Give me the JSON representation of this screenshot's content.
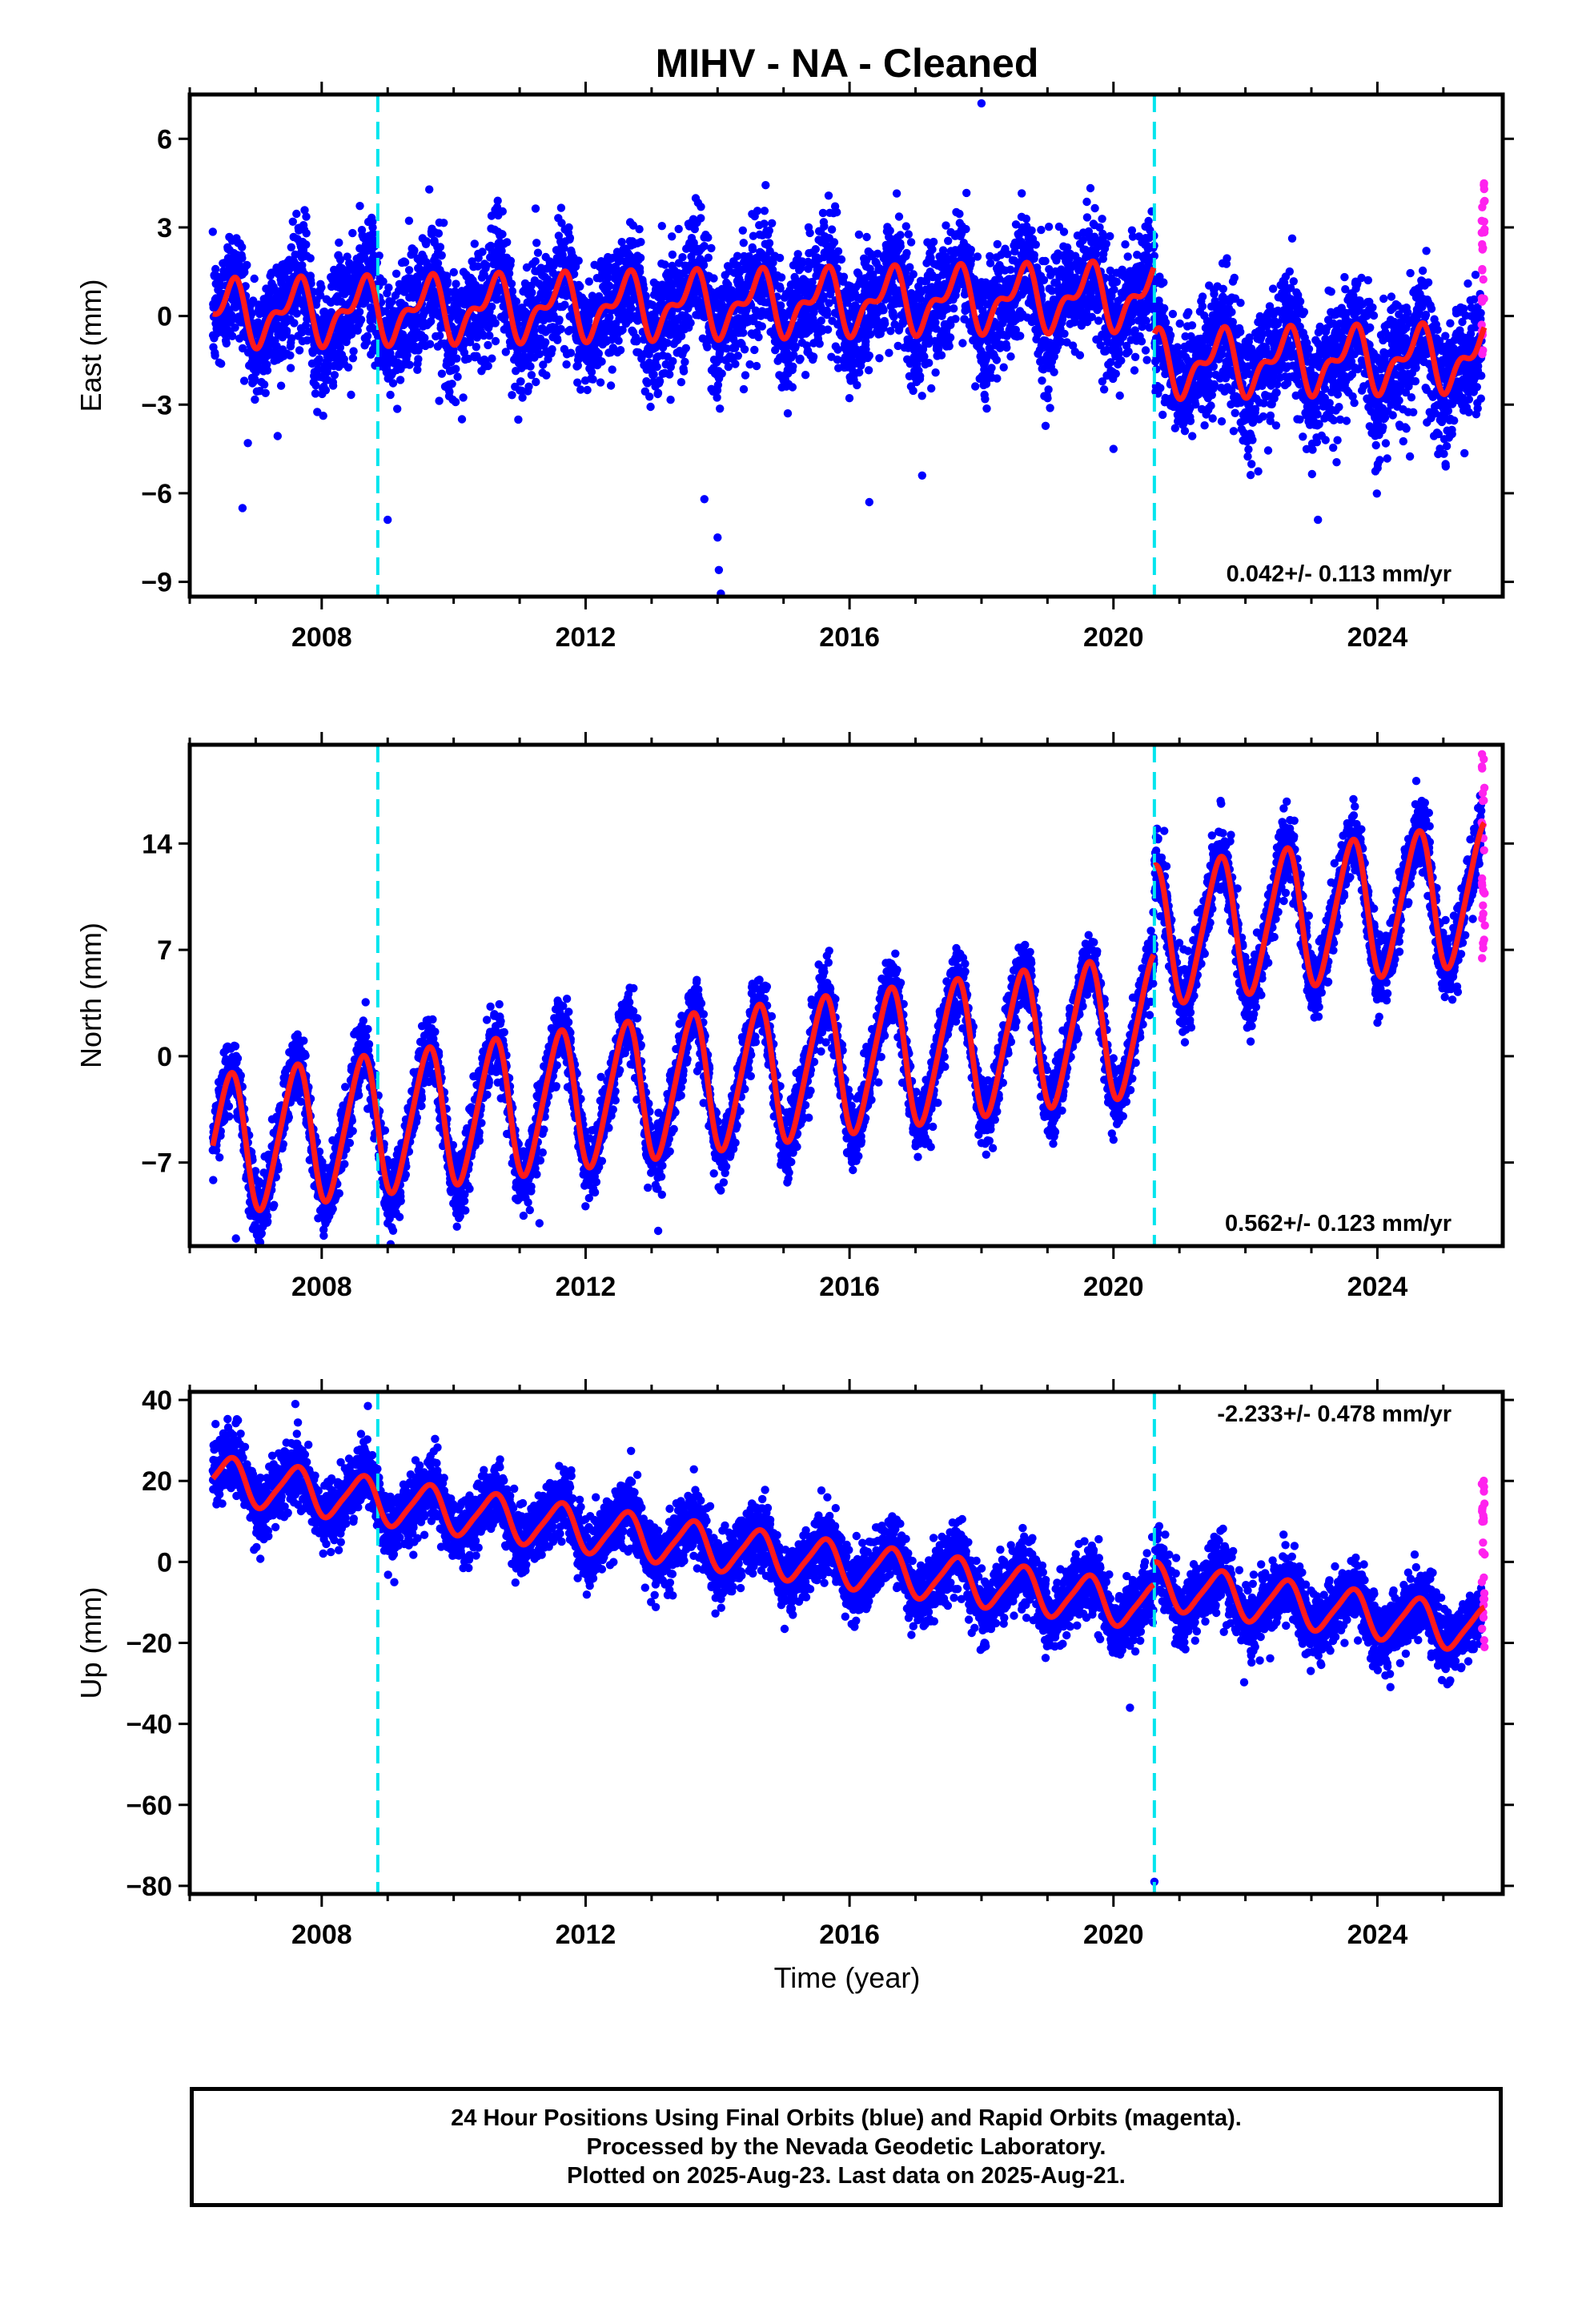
{
  "colors": {
    "final_orbits": "#0000ff",
    "rapid_orbits": "#ff22ee",
    "model_fit": "#ff1a1a",
    "equipment_change": "#00e5ee",
    "frame": "#000000"
  },
  "chart_data": {
    "type": "scatter",
    "title": "MIHV  - NA - Cleaned",
    "xlabel": "Time (year)",
    "x_tick_labels": [
      "2008",
      "2012",
      "2016",
      "2020",
      "2024"
    ],
    "xlim": [
      2006.0,
      2025.9
    ],
    "data_span": [
      2006.35,
      2025.63
    ],
    "equipment_change_years": [
      2008.85,
      2020.62
    ],
    "grid": false,
    "panels": [
      {
        "ylabel": "East (mm)",
        "ylim": [
          -9.5,
          7.5
        ],
        "y_ticks": [
          6,
          3,
          0,
          -3,
          -6,
          -9
        ],
        "y_tick_labels": [
          "6",
          "3",
          "0",
          "−3",
          "−6",
          "−9"
        ],
        "rate": "0.042+/- 0.113 mm/yr",
        "rate_position": "bottom-right",
        "model": {
          "offset_before": 0.4,
          "offset_after": -1.9,
          "annual_amp": 0.9,
          "semi_amp": 0.5,
          "trend": 0.042,
          "ref_year": 2014,
          "offset_year": 2020.62
        },
        "scatter_sd": 1.0,
        "rapid_range": [
          -3.0,
          4.5
        ],
        "outliers": [
          [
            2006.8,
            -6.5
          ],
          [
            2009.0,
            -6.9
          ],
          [
            2013.8,
            -6.2
          ],
          [
            2014.0,
            -7.5
          ],
          [
            2014.02,
            -8.6
          ],
          [
            2014.05,
            -9.4
          ],
          [
            2016.3,
            -6.3
          ],
          [
            2017.1,
            -5.4
          ],
          [
            2018.0,
            7.2
          ],
          [
            2020.0,
            -4.5
          ],
          [
            2023.1,
            -6.9
          ]
        ]
      },
      {
        "ylabel": "North (mm)",
        "ylim": [
          -12.5,
          20.5
        ],
        "y_ticks": [
          14,
          7,
          0,
          -7
        ],
        "y_tick_labels": [
          "14",
          "7",
          "0",
          "−7"
        ],
        "rate": "0.562+/- 0.123 mm/yr",
        "rate_position": "bottom-right",
        "model": {
          "offset_before": -1.6,
          "offset_after": 4.2,
          "annual_amp": 4.5,
          "semi_amp": 0.6,
          "trend": 0.562,
          "ref_year": 2014,
          "offset_year": 2020.62
        },
        "scatter_sd": 1.1,
        "rapid_range": [
          6.0,
          20.0
        ],
        "outliers": [
          [
            2006.7,
            -12.0
          ],
          [
            2009.0,
            -11.0
          ],
          [
            2011.3,
            -11.0
          ],
          [
            2013.1,
            -11.5
          ],
          [
            2020.0,
            -5.5
          ]
        ]
      },
      {
        "ylabel": "Up (mm)",
        "ylim": [
          -82,
          42
        ],
        "y_ticks": [
          40,
          20,
          0,
          -20,
          -40,
          -60,
          -80
        ],
        "y_tick_labels": [
          "40",
          "20",
          "0",
          "−20",
          "−40",
          "−60",
          "−80"
        ],
        "rate": "-2.233+/- 0.478 mm/yr",
        "rate_position": "top-right",
        "model": {
          "offset_before": 3.5,
          "offset_after": 9.0,
          "annual_amp": 5.5,
          "semi_amp": 1.0,
          "trend": -2.233,
          "ref_year": 2014,
          "offset_year": 2020.62
        },
        "scatter_sd": 4.0,
        "rapid_range": [
          -25.0,
          31.0
        ],
        "outliers": [
          [
            2007.6,
            39.0
          ],
          [
            2008.7,
            38.5
          ],
          [
            2020.25,
            -36.0
          ],
          [
            2020.62,
            -79.0
          ],
          [
            2009.1,
            -5.0
          ]
        ]
      }
    ]
  },
  "caption": {
    "line1": "24 Hour Positions Using Final Orbits (blue) and Rapid Orbits (magenta).",
    "line2": "Processed by the Nevada Geodetic Laboratory.",
    "line3": "Plotted on 2025-Aug-23. Last data on 2025-Aug-21."
  }
}
